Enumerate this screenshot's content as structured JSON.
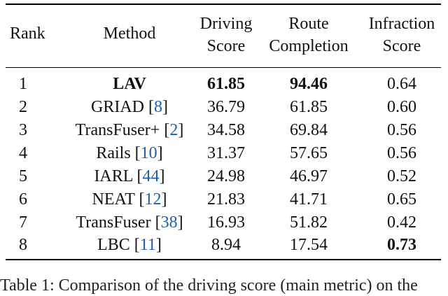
{
  "table": {
    "headers": {
      "rank": "Rank",
      "method": "Method",
      "driving_score": [
        "Driving",
        "Score"
      ],
      "route_completion": [
        "Route",
        "Completion"
      ],
      "infraction_score": [
        "Infraction",
        "Score"
      ]
    },
    "rows": [
      {
        "rank": "1",
        "method": "LAV",
        "ref": "",
        "ds": "61.85",
        "rc": "94.46",
        "is": "0.64"
      },
      {
        "rank": "2",
        "method": "GRIAD",
        "ref": "8",
        "ds": "36.79",
        "rc": "61.85",
        "is": "0.60"
      },
      {
        "rank": "3",
        "method": "TransFuser+",
        "ref": "2",
        "ds": "34.58",
        "rc": "69.84",
        "is": "0.56"
      },
      {
        "rank": "4",
        "method": "Rails",
        "ref": "10",
        "ds": "31.37",
        "rc": "57.65",
        "is": "0.56"
      },
      {
        "rank": "5",
        "method": "IARL",
        "ref": "44",
        "ds": "24.98",
        "rc": "46.97",
        "is": "0.52"
      },
      {
        "rank": "6",
        "method": "NEAT",
        "ref": "12",
        "ds": "21.83",
        "rc": "41.71",
        "is": "0.65"
      },
      {
        "rank": "7",
        "method": "TransFuser",
        "ref": "38",
        "ds": "16.93",
        "rc": "51.82",
        "is": "0.42"
      },
      {
        "rank": "8",
        "method": "LBC",
        "ref": "11",
        "ds": "8.94",
        "rc": "17.54",
        "is": "0.73"
      }
    ]
  },
  "caption": "Table 1: Comparison of the driving score (main metric) on the"
}
